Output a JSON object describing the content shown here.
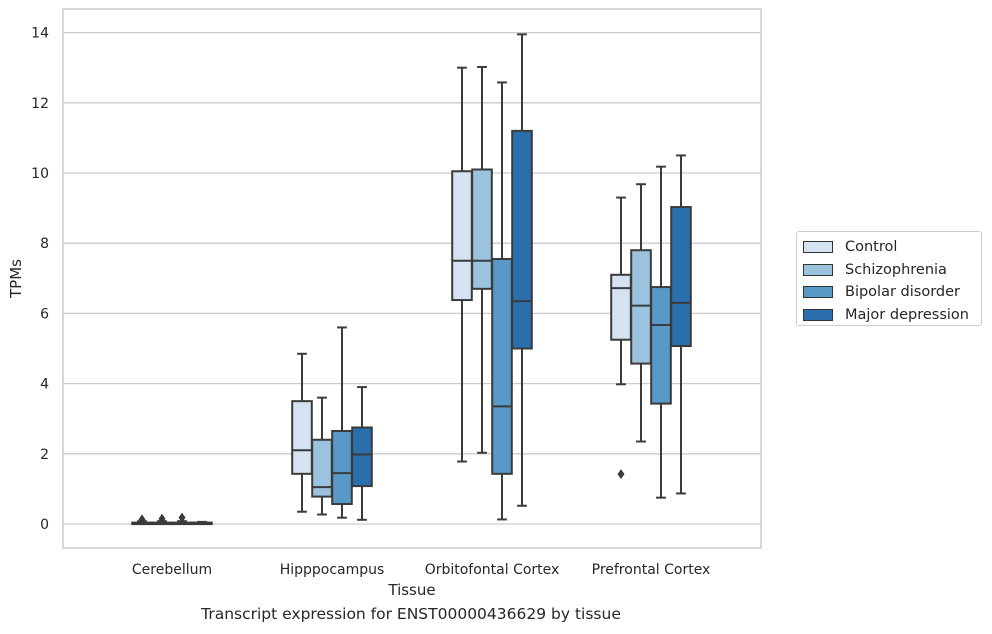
{
  "chart_data": {
    "type": "box",
    "caption": "Transcript expression for ENST00000436629 by tissue",
    "xlabel": "Tissue",
    "ylabel": "TPMs",
    "ylim": [
      -0.67,
      14.67
    ],
    "yticks": [
      "0",
      "2",
      "4",
      "6",
      "8",
      "10",
      "12",
      "14"
    ],
    "grid": true,
    "legend_position": "right",
    "categories": [
      "Cerebellum",
      "Hipppocampus",
      "Orbitofontal Cortex",
      "Prefrontal Cortex"
    ],
    "series": [
      {
        "name": "Control",
        "color": "#d4e2f1",
        "boxes": [
          {
            "whislo": 0,
            "q1": 0.01,
            "med": 0.02,
            "q3": 0.04,
            "whishi": 0.08,
            "fliers": [
              0.13
            ]
          },
          {
            "whislo": 0.35,
            "q1": 1.43,
            "med": 2.1,
            "q3": 3.5,
            "whishi": 4.85,
            "fliers": []
          },
          {
            "whislo": 1.78,
            "q1": 6.38,
            "med": 7.5,
            "q3": 10.05,
            "whishi": 13.0,
            "fliers": []
          },
          {
            "whislo": 3.98,
            "q1": 5.25,
            "med": 6.72,
            "q3": 7.1,
            "whishi": 9.3,
            "fliers": [
              1.42
            ]
          }
        ]
      },
      {
        "name": "Schizophrenia",
        "color": "#9bc3de",
        "boxes": [
          {
            "whislo": 0,
            "q1": 0.01,
            "med": 0.02,
            "q3": 0.04,
            "whishi": 0.08,
            "fliers": [
              0.15
            ]
          },
          {
            "whislo": 0.27,
            "q1": 0.78,
            "med": 1.05,
            "q3": 2.4,
            "whishi": 3.6,
            "fliers": []
          },
          {
            "whislo": 2.03,
            "q1": 6.7,
            "med": 7.5,
            "q3": 10.1,
            "whishi": 13.02,
            "fliers": []
          },
          {
            "whislo": 2.35,
            "q1": 4.57,
            "med": 6.22,
            "q3": 7.8,
            "whishi": 9.68,
            "fliers": []
          }
        ]
      },
      {
        "name": "Bipolar disorder",
        "color": "#5899c7",
        "boxes": [
          {
            "whislo": 0,
            "q1": 0.01,
            "med": 0.02,
            "q3": 0.04,
            "whishi": 0.08,
            "fliers": [
              0.18
            ]
          },
          {
            "whislo": 0.18,
            "q1": 0.57,
            "med": 1.45,
            "q3": 2.65,
            "whishi": 5.6,
            "fliers": []
          },
          {
            "whislo": 0.13,
            "q1": 1.43,
            "med": 3.35,
            "q3": 7.55,
            "whishi": 12.58,
            "fliers": []
          },
          {
            "whislo": 0.75,
            "q1": 3.43,
            "med": 5.67,
            "q3": 6.75,
            "whishi": 10.18,
            "fliers": []
          }
        ]
      },
      {
        "name": "Major depression",
        "color": "#2a6ead",
        "boxes": [
          {
            "whislo": 0,
            "q1": 0.01,
            "med": 0.02,
            "q3": 0.04,
            "whishi": 0.06,
            "fliers": []
          },
          {
            "whislo": 0.12,
            "q1": 1.08,
            "med": 1.98,
            "q3": 2.75,
            "whishi": 3.9,
            "fliers": []
          },
          {
            "whislo": 0.52,
            "q1": 5.0,
            "med": 6.35,
            "q3": 11.2,
            "whishi": 13.95,
            "fliers": []
          },
          {
            "whislo": 0.87,
            "q1": 5.07,
            "med": 6.3,
            "q3": 9.03,
            "whishi": 10.5,
            "fliers": []
          }
        ]
      }
    ]
  }
}
